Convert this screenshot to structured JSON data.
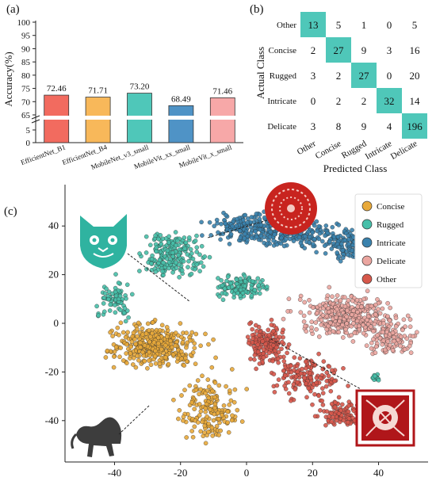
{
  "panels": {
    "a": "(a)",
    "b": "(b)",
    "c": "(c)"
  },
  "chart_data": [
    {
      "type": "bar",
      "ylabel": "Accuracy(%)",
      "y_ticks_upper": [
        65,
        70,
        75,
        80,
        85,
        90,
        95,
        100
      ],
      "y_ticks_lower": [
        0,
        5
      ],
      "axis_break": true,
      "categories": [
        "EfficientNet_B1",
        "EfficientNet_B4",
        "MobileNet_v3_small",
        "MobileVit_xx_small",
        "MobileVit_x_small"
      ],
      "values": [
        72.46,
        71.71,
        73.2,
        68.49,
        71.46
      ],
      "value_labels": [
        "72.46",
        "71.71",
        "73.20",
        "68.49",
        "71.46"
      ],
      "colors": [
        "#f26b5f",
        "#f8b85a",
        "#4fc7b9",
        "#4f93c6",
        "#f7a8a8"
      ]
    },
    {
      "type": "heatmap",
      "xlabel": "Predicted Class",
      "ylabel": "Actual Class",
      "x_categories": [
        "Other",
        "Concise",
        "Rugged",
        "Intricate",
        "Delicate"
      ],
      "y_categories": [
        "Other",
        "Concise",
        "Rugged",
        "Intricate",
        "Delicate"
      ],
      "matrix": [
        [
          13,
          5,
          1,
          0,
          5
        ],
        [
          2,
          27,
          9,
          3,
          16
        ],
        [
          3,
          2,
          27,
          0,
          20
        ],
        [
          0,
          2,
          2,
          32,
          14
        ],
        [
          3,
          8,
          9,
          4,
          196
        ]
      ],
      "highlight_color": "#4fc7b9"
    },
    {
      "type": "scatter",
      "x_ticks": [
        -40,
        -20,
        0,
        20,
        40
      ],
      "y_ticks": [
        -40,
        -20,
        0,
        20,
        40
      ],
      "xlim": [
        -55,
        55
      ],
      "ylim": [
        -57,
        57
      ],
      "legend": {
        "position": "top-right",
        "entries": [
          "Concise",
          "Rugged",
          "Intricate",
          "Delicate",
          "Other"
        ]
      },
      "colors": {
        "Concise": "#e8a93a",
        "Rugged": "#47bfa9",
        "Intricate": "#3a82ad",
        "Delicate": "#eba6a0",
        "Other": "#d7584b"
      },
      "clusters": [
        {
          "class": "Intricate",
          "center": [
            1,
            39
          ],
          "spread": [
            8,
            4
          ],
          "points": 180
        },
        {
          "class": "Intricate",
          "center": [
            17,
            36
          ],
          "spread": [
            10,
            4
          ],
          "points": 170
        },
        {
          "class": "Intricate",
          "center": [
            32,
            32
          ],
          "spread": [
            5,
            4
          ],
          "points": 110
        },
        {
          "class": "Rugged",
          "center": [
            -22,
            28
          ],
          "spread": [
            6,
            7
          ],
          "points": 200
        },
        {
          "class": "Rugged",
          "center": [
            -40,
            10
          ],
          "spread": [
            4,
            5
          ],
          "points": 80
        },
        {
          "class": "Rugged",
          "center": [
            -1,
            15
          ],
          "spread": [
            5,
            3
          ],
          "points": 130
        },
        {
          "class": "Rugged",
          "center": [
            39,
            -22
          ],
          "spread": [
            1,
            1
          ],
          "points": 12
        },
        {
          "class": "Delicate",
          "center": [
            30,
            3
          ],
          "spread": [
            10,
            6
          ],
          "points": 340
        },
        {
          "class": "Delicate",
          "center": [
            44,
            -6
          ],
          "spread": [
            5,
            5
          ],
          "points": 110
        },
        {
          "class": "Concise",
          "center": [
            -28,
            -9
          ],
          "spread": [
            9,
            6
          ],
          "points": 360
        },
        {
          "class": "Concise",
          "center": [
            -11,
            -35
          ],
          "spread": [
            6,
            9
          ],
          "points": 170
        },
        {
          "class": "Other",
          "center": [
            6,
            -8
          ],
          "spread": [
            4,
            6
          ],
          "points": 160
        },
        {
          "class": "Other",
          "center": [
            19,
            -22
          ],
          "spread": [
            7,
            6
          ],
          "points": 150
        },
        {
          "class": "Other",
          "center": [
            29,
            -38
          ],
          "spread": [
            5,
            4
          ],
          "points": 110
        }
      ]
    }
  ]
}
